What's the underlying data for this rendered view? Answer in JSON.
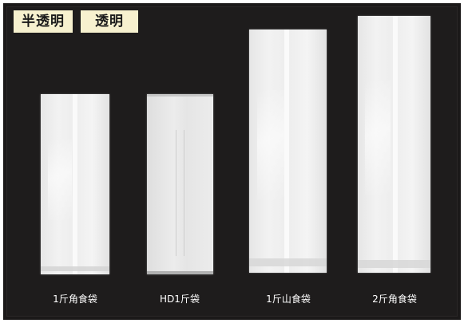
{
  "tags": {
    "semi_transparent": "半透明",
    "transparent": "透明"
  },
  "bags": [
    {
      "label": "1斤角食袋"
    },
    {
      "label": "HD1斤袋"
    },
    {
      "label": "1斤山食袋"
    },
    {
      "label": "2斤角食袋"
    }
  ],
  "colors": {
    "background": "#1e1c1c",
    "tag_background": "#f7f1cf",
    "label_text": "#ffffff"
  }
}
